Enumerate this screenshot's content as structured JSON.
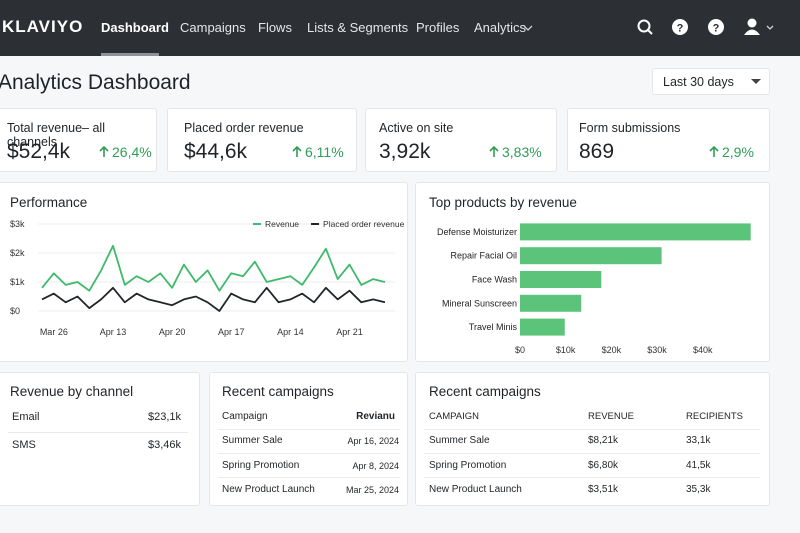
{
  "nav": {
    "logo": "KLAVIYO",
    "items": [
      "Dashboard",
      "Campaigns",
      "Flows",
      "Lists & Segments",
      "Profiles",
      "Analytics"
    ]
  },
  "header": {
    "title": "Analytics Dashboard",
    "date_range": "Last 30 days"
  },
  "kpis": [
    {
      "label": "Total revenue– all channels",
      "value": "$52,4k",
      "change": "26,4%"
    },
    {
      "label": "Placed order revenue",
      "value": "$44,6k",
      "change": "6,11%"
    },
    {
      "label": "Active on site",
      "value": "3,92k",
      "change": "3,83%"
    },
    {
      "label": "Form submissions",
      "value": "869",
      "change": "2,9%"
    }
  ],
  "chart_data": [
    {
      "type": "line",
      "title": "Performance",
      "categories": [
        null,
        "Mar 26",
        null,
        null,
        null,
        null,
        "Apr 13",
        null,
        null,
        null,
        null,
        "Apr 20",
        null,
        null,
        null,
        null,
        "Apr 17",
        null,
        null,
        null,
        null,
        "Apr 14",
        null,
        null,
        null,
        null,
        "Apr 21",
        null,
        null,
        null
      ],
      "series": [
        {
          "name": "Revenue",
          "color": "#3dba6a",
          "values": [
            800,
            1300,
            900,
            1000,
            700,
            1400,
            2250,
            900,
            1200,
            1000,
            1300,
            800,
            1600,
            1000,
            1400,
            700,
            1300,
            1200,
            1700,
            1000,
            1100,
            1200,
            900,
            1500,
            2150,
            1100,
            1600,
            900,
            1100,
            1000
          ]
        },
        {
          "name": "Placed order revenue",
          "color": "#22262a",
          "values": [
            400,
            600,
            300,
            500,
            100,
            400,
            800,
            300,
            600,
            400,
            300,
            200,
            400,
            500,
            300,
            0,
            600,
            400,
            300,
            800,
            300,
            400,
            600,
            300,
            800,
            400,
            700,
            300,
            400,
            300
          ]
        }
      ],
      "ylim": [
        0,
        3000
      ],
      "yticks": [
        {
          "value": 0,
          "label": "$0"
        },
        {
          "value": 1000,
          "label": "$1k"
        },
        {
          "value": 2000,
          "label": "$2k"
        },
        {
          "value": 3000,
          "label": "$3k"
        }
      ],
      "grid": true,
      "legend": "top-right"
    },
    {
      "type": "bar",
      "orientation": "horizontal",
      "title": "Top products by revenue",
      "categories": [
        "Defense Moisturizer",
        "Repair Facial Oil",
        "Face Wash",
        "Mineral Sunscreen",
        "Travel Minis"
      ],
      "values": [
        50500,
        31000,
        17800,
        13400,
        9800
      ],
      "color": "#5cc47a",
      "xlim": [
        0,
        51000
      ],
      "xticks": [
        {
          "value": 0,
          "label": "$0"
        },
        {
          "value": 10000,
          "label": "$10k"
        },
        {
          "value": 20000,
          "label": "$20k"
        },
        {
          "value": 30000,
          "label": "$30k"
        },
        {
          "value": 40000,
          "label": "$40k"
        }
      ]
    }
  ],
  "revenue_by_channel": {
    "title": "Revenue by channel",
    "rows": [
      [
        "Email",
        "$23,1k"
      ],
      [
        "SMS",
        "$3,46k"
      ]
    ]
  },
  "recent_campaigns": {
    "title": "Recent campaigns",
    "columns": [
      "Campaign",
      "Revianu"
    ],
    "rows": [
      [
        "Summer Sale",
        "Apr 16, 2024"
      ],
      [
        "Spring Promotion",
        "Apr 8, 2024"
      ],
      [
        "New Product Launch",
        "Mar 25, 2024"
      ]
    ]
  },
  "recent_campaigns_detail": {
    "title": "Recent campaigns",
    "columns": [
      "CAMPAIGN",
      "REVENUE",
      "RECIPIENTS"
    ],
    "rows": [
      [
        "Summer Sale",
        "$8,21k",
        "33,1k"
      ],
      [
        "Spring Promotion",
        "$6,80k",
        "41,5k"
      ],
      [
        "New Product Launch",
        "$3,51k",
        "35,3k"
      ]
    ]
  }
}
